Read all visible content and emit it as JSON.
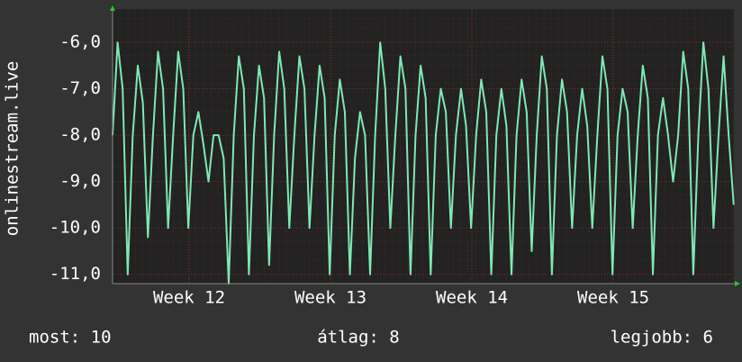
{
  "chart_data": {
    "type": "line",
    "y_label": "onlinestream.live",
    "x": [
      0,
      0.25,
      0.5,
      0.75,
      1,
      1.25,
      1.5,
      1.75,
      2,
      2.25,
      2.5,
      2.75,
      3,
      3.25,
      3.5,
      3.75,
      4,
      4.25,
      4.5,
      4.75,
      5,
      5.25,
      5.5,
      5.75,
      6,
      6.25,
      6.5,
      6.75,
      7,
      7.25,
      7.5,
      7.75,
      8,
      8.25,
      8.5,
      8.75,
      9,
      9.25,
      9.5,
      9.75,
      10,
      10.25,
      10.5,
      10.75,
      11,
      11.25,
      11.5,
      11.75,
      12,
      12.25,
      12.5,
      12.75,
      13,
      13.25,
      13.5,
      13.75,
      14,
      14.25,
      14.5,
      14.75,
      15,
      15.25,
      15.5,
      15.75,
      16,
      16.25,
      16.5,
      16.75,
      17,
      17.25,
      17.5,
      17.75,
      18,
      18.25,
      18.5,
      18.75,
      19,
      19.25,
      19.5,
      19.75,
      20,
      20.25,
      20.5,
      20.75,
      21,
      21.25,
      21.5,
      21.75,
      22,
      22.25,
      22.5,
      22.75,
      23,
      23.25,
      23.5,
      23.75,
      24,
      24.25,
      24.5,
      24.75,
      25,
      25.25,
      25.5,
      25.75,
      26,
      26.25,
      26.5,
      26.75,
      27,
      27.25,
      27.5,
      27.75,
      28,
      28.25,
      28.5,
      28.75,
      29,
      29.25,
      29.5,
      29.75,
      30,
      30.25,
      30.5,
      30.75
    ],
    "series": [
      {
        "name": "onlinestream.live",
        "color": "#7ee8b4",
        "values": [
          -8,
          -6,
          -7,
          -11,
          -8,
          -6.5,
          -7.3,
          -10.2,
          -8,
          -6.2,
          -7,
          -10,
          -8,
          -6.2,
          -7,
          -10,
          -8,
          -7.5,
          -8.2,
          -9,
          -8,
          -8,
          -8.5,
          -11.2,
          -8,
          -6.3,
          -7,
          -11,
          -8,
          -6.5,
          -7.2,
          -10.8,
          -8,
          -6.2,
          -7,
          -10,
          -8,
          -6.3,
          -7,
          -10,
          -8,
          -6.5,
          -7.2,
          -11,
          -8,
          -6.8,
          -7.5,
          -11,
          -8.5,
          -7.5,
          -8,
          -11,
          -8,
          -6,
          -7,
          -10,
          -8,
          -6.3,
          -7,
          -11,
          -8,
          -6.5,
          -7.2,
          -11,
          -8,
          -7,
          -7.5,
          -10,
          -8,
          -7,
          -7.8,
          -10,
          -8,
          -6.8,
          -7.5,
          -11,
          -8,
          -7,
          -7.8,
          -11,
          -8,
          -6.8,
          -7.5,
          -10.5,
          -8,
          -6.3,
          -7,
          -11,
          -8,
          -6.8,
          -7.5,
          -10,
          -8,
          -7,
          -7.8,
          -10,
          -8,
          -6.3,
          -7,
          -11,
          -8,
          -7,
          -7.5,
          -10,
          -8,
          -6.5,
          -7.2,
          -11,
          -8,
          -7.2,
          -8,
          -9,
          -8,
          -6.2,
          -7,
          -11,
          -8,
          -6,
          -7,
          -10,
          -8,
          -6.3,
          -8,
          -9.5
        ]
      }
    ],
    "xlim": [
      0,
      30.76
    ],
    "xticks": [
      {
        "value": 3.79,
        "label": "Week 12"
      },
      {
        "value": 10.79,
        "label": "Week 13"
      },
      {
        "value": 17.79,
        "label": "Week 14"
      },
      {
        "value": 24.79,
        "label": "Week 15"
      }
    ],
    "ylim": [
      -11.2,
      -5.28
    ],
    "yticks": [
      {
        "value": -6,
        "label": "-6,0"
      },
      {
        "value": -7,
        "label": "-7,0"
      },
      {
        "value": -8,
        "label": "-8,0"
      },
      {
        "value": -9,
        "label": "-9,0"
      },
      {
        "value": -10,
        "label": "-10,0"
      },
      {
        "value": -11,
        "label": "-11,0"
      }
    ],
    "grid": true,
    "footer": [
      "most: 10",
      "átlag: 8",
      "legjobb: 6"
    ]
  }
}
